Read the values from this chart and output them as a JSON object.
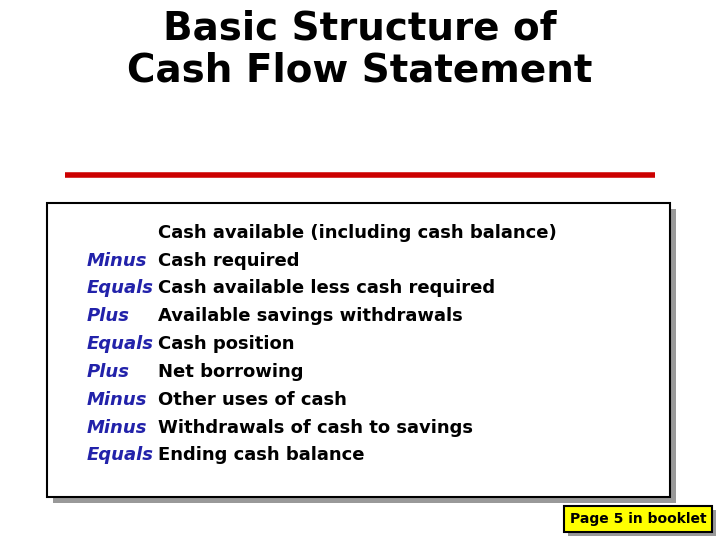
{
  "title_line1": "Basic Structure of",
  "title_line2": "Cash Flow Statement",
  "title_color": "#000000",
  "title_fontsize": 28,
  "title_fontweight": "bold",
  "red_line_color": "#CC0000",
  "background_color": "#ffffff",
  "box_border_color": "#000000",
  "box_shadow_color": "#999999",
  "rows": [
    {
      "label": "",
      "label_color": "#2222aa",
      "text": "Cash available (including cash balance)",
      "text_color": "#000000"
    },
    {
      "label": "Minus",
      "label_color": "#2222aa",
      "text": "Cash required",
      "text_color": "#000000"
    },
    {
      "label": "Equals",
      "label_color": "#2222aa",
      "text": "Cash available less cash required",
      "text_color": "#000000"
    },
    {
      "label": "Plus",
      "label_color": "#2222aa",
      "text": "Available savings withdrawals",
      "text_color": "#000000"
    },
    {
      "label": "Equals",
      "label_color": "#2222aa",
      "text": "Cash position",
      "text_color": "#000000"
    },
    {
      "label": "Plus",
      "label_color": "#2222aa",
      "text": "Net borrowing",
      "text_color": "#000000"
    },
    {
      "label": "Minus",
      "label_color": "#2222aa",
      "text": "Other uses of cash",
      "text_color": "#000000"
    },
    {
      "label": "Minus",
      "label_color": "#2222aa",
      "text": "Withdrawals of cash to savings",
      "text_color": "#000000"
    },
    {
      "label": "Equals",
      "label_color": "#2222aa",
      "text": "Ending cash balance",
      "text_color": "#000000"
    }
  ],
  "row_fontsize": 13,
  "page_note": "Page 5 in booklet",
  "page_note_bg": "#ffff00",
  "page_note_border": "#000000",
  "page_note_fontsize": 10,
  "fig_width": 7.2,
  "fig_height": 5.4,
  "dpi": 100
}
